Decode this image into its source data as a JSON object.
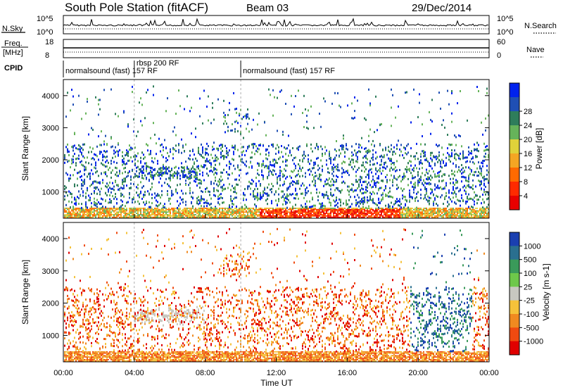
{
  "header": {
    "station": "South Pole Station (fitACF)",
    "beam": "Beam 03",
    "date": "29/Dec/2014"
  },
  "sky_panel": {
    "left_label": "N.Sky",
    "left_ticks": [
      "10^5",
      "10^0"
    ],
    "right_label": "N.Search",
    "right_ticks": [
      "10^5",
      "10^0"
    ]
  },
  "freq_panel": {
    "left_label_1": "Freq.",
    "left_label_2": "[MHz]",
    "left_ticks": [
      "18",
      "8"
    ],
    "right_label": "Nave",
    "right_ticks": [
      "60",
      "0"
    ]
  },
  "cpid_panel": {
    "label": "CPID",
    "segments": [
      {
        "start_hour": 0,
        "end_hour": 4,
        "text": "normalsound (fast) 157 RF"
      },
      {
        "start_hour": 4,
        "end_hour": 10,
        "text": "rbsp 200 RF"
      },
      {
        "start_hour": 10,
        "end_hour": 24,
        "text": "normalsound (fast) 157 RF"
      }
    ]
  },
  "chart_data": [
    {
      "type": "heatmap",
      "name": "power",
      "ylabel": "Slant Range [km]",
      "yticks": [
        "1000",
        "2000",
        "3000",
        "4000"
      ],
      "ylim": [
        180,
        4500
      ],
      "xlim": [
        0,
        24
      ],
      "colorbar_label": "Power [dB]",
      "colorbar_ticks": [
        "4",
        "8",
        "12",
        "16",
        "20",
        "24",
        "28"
      ],
      "colorscale": [
        "#0022ee",
        "#1f4fb4",
        "#2e7d5b",
        "#66b35a",
        "#e0d23a",
        "#f5a623",
        "#ff6a00",
        "#ff2a00",
        "#e80000"
      ],
      "echo_regions": [
        {
          "t0": 0.0,
          "t1": 24.0,
          "r0": 200,
          "r1": 350,
          "level": 5
        },
        {
          "t0": 4.0,
          "t1": 7.5,
          "r0": 1400,
          "r1": 1800,
          "level": 2
        },
        {
          "t0": 12.0,
          "t1": 19.0,
          "r0": 300,
          "r1": 600,
          "level": 6
        },
        {
          "t0": 19.5,
          "t1": 23.0,
          "r0": 800,
          "r1": 2200,
          "level": 3
        }
      ]
    },
    {
      "type": "heatmap",
      "name": "velocity",
      "ylabel": "Slant Range [km]",
      "yticks": [
        "1000",
        "2000",
        "3000",
        "4000"
      ],
      "ylim": [
        180,
        4500
      ],
      "xlim": [
        0,
        24
      ],
      "xlabel": "Time UT",
      "xticks": [
        "00:00",
        "04:00",
        "08:00",
        "12:00",
        "16:00",
        "20:00",
        "00:00"
      ],
      "colorbar_label": "Velocity [m s-1]",
      "colorbar_ticks": [
        "1000",
        "500",
        "100",
        "25",
        "-25",
        "-100",
        "-500",
        "-1000"
      ],
      "colorscale": [
        "#1a3fb0",
        "#2a6f8f",
        "#3a9a5a",
        "#6ec84a",
        "#c8c8c0",
        "#f5c23a",
        "#f08a20",
        "#f04a10",
        "#e00000"
      ],
      "echo_regions": [
        {
          "t0": 0.0,
          "t1": 24.0,
          "r0": 200,
          "r1": 450,
          "level": 6
        },
        {
          "t0": 4.0,
          "t1": 7.0,
          "r0": 1400,
          "r1": 1800,
          "level": 4
        },
        {
          "t0": 11.0,
          "t1": 15.0,
          "r0": 600,
          "r1": 2200,
          "level": 7
        },
        {
          "t0": 19.5,
          "t1": 23.0,
          "r0": 500,
          "r1": 2000,
          "level": 1
        }
      ]
    }
  ]
}
